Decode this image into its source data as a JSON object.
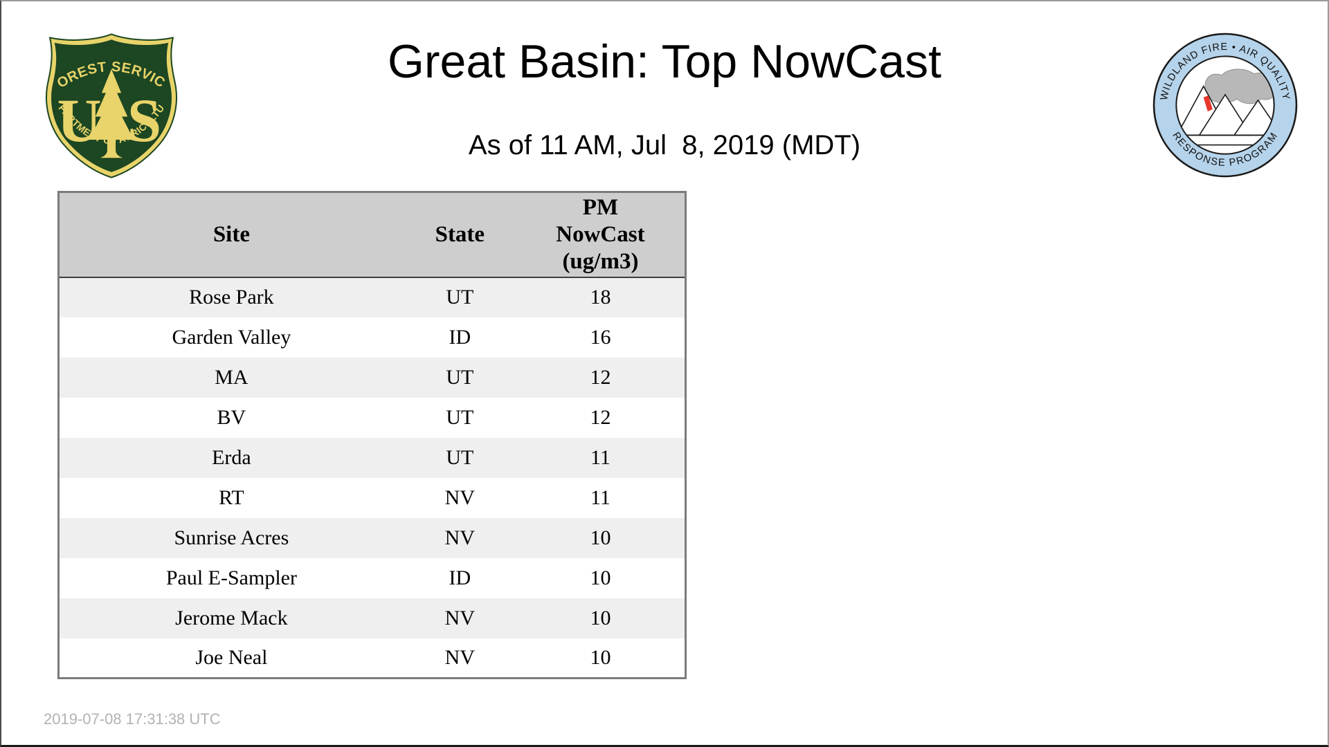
{
  "header": {
    "title": "Great Basin: Top NowCast",
    "subtitle": "As of 11 AM, Jul  8, 2019 (MDT)"
  },
  "logos": {
    "forest_service": {
      "arc_top": "FOREST SERVICE",
      "letter_u": "U",
      "letter_s": "S",
      "arc_bottom": "DEPARTMENT OF AGRICULTURE",
      "colors": {
        "green": "#1d4622",
        "gold": "#e8d46a"
      }
    },
    "wfaqrp": {
      "arc_top": "WILDLAND FIRE • AIR QUALITY",
      "arc_bottom": "RESPONSE PROGRAM",
      "colors": {
        "ring": "#b5d3ea",
        "smoke": "#b8b8b8",
        "flame": "#e8372c",
        "outline": "#1a1a1a"
      }
    }
  },
  "table_header": {
    "site": "Site",
    "state": "State",
    "pm_line1": "PM",
    "pm_line2": "NowCast",
    "pm_line3": "(ug/m3)"
  },
  "chart_data": {
    "type": "table",
    "title": "Great Basin: Top NowCast",
    "subtitle": "As of 11 AM, Jul  8, 2019 (MDT)",
    "columns": [
      "Site",
      "State",
      "PM NowCast (ug/m3)"
    ],
    "rows": [
      [
        "Rose Park",
        "UT",
        "18"
      ],
      [
        "Garden Valley",
        "ID",
        "16"
      ],
      [
        "MA",
        "UT",
        "12"
      ],
      [
        "BV",
        "UT",
        "12"
      ],
      [
        "Erda",
        "UT",
        "11"
      ],
      [
        "RT",
        "NV",
        "11"
      ],
      [
        "Sunrise Acres",
        "NV",
        "10"
      ],
      [
        "Paul E-Sampler",
        "ID",
        "10"
      ],
      [
        "Jerome Mack",
        "NV",
        "10"
      ],
      [
        "Joe Neal",
        "NV",
        "10"
      ]
    ],
    "layout": {
      "row_striping": [
        "#efefef",
        "#ffffff"
      ],
      "header_bg": "#cecece",
      "grid": "outer-border-only"
    }
  },
  "footer": {
    "generated_at": "2019-07-08 17:31:38 UTC"
  }
}
